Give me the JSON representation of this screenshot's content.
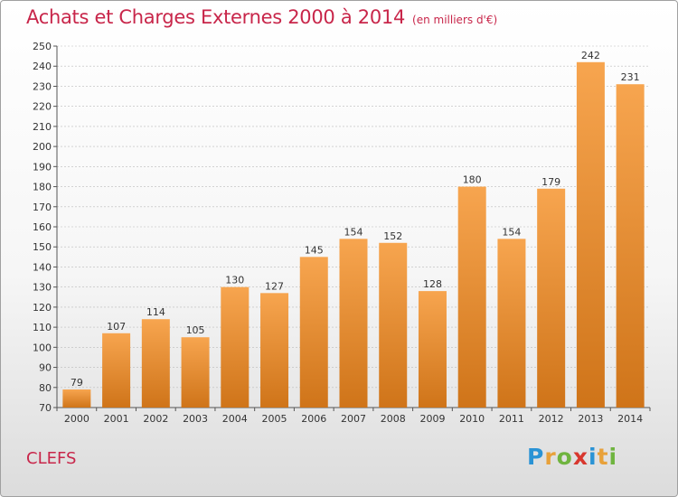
{
  "header": {
    "title": "Achats et Charges Externes 2000 à 2014",
    "subtitle": "(en milliers d'€)"
  },
  "footer": {
    "town": "CLEFS",
    "logo": [
      "P",
      "r",
      "o",
      "x",
      "i",
      "t",
      "i"
    ],
    "logo_colors": [
      "#2a93d5",
      "#e8a13a",
      "#6fb43f",
      "#d8372e",
      "#2a93d5",
      "#e8a13a",
      "#6fb43f"
    ]
  },
  "colors": {
    "title": "#c8264a",
    "bar_top": "#f7a54f",
    "bar_bottom": "#cf7419",
    "grid": "#bbbbbb"
  },
  "chart_data": {
    "type": "bar",
    "categories": [
      "2000",
      "2001",
      "2002",
      "2003",
      "2004",
      "2005",
      "2006",
      "2007",
      "2008",
      "2009",
      "2010",
      "2011",
      "2012",
      "2013",
      "2014"
    ],
    "values": [
      79,
      107,
      114,
      105,
      130,
      127,
      145,
      154,
      152,
      128,
      180,
      154,
      179,
      242,
      231
    ],
    "title": "Achats et Charges Externes 2000 à 2014",
    "subtitle": "(en milliers d'€)",
    "xlabel": "",
    "ylabel": "",
    "ylim": [
      70,
      250
    ],
    "yticks": [
      70,
      80,
      90,
      100,
      110,
      120,
      130,
      140,
      150,
      160,
      170,
      180,
      190,
      200,
      210,
      220,
      230,
      240,
      250
    ],
    "grid": true,
    "data_labels": true
  }
}
